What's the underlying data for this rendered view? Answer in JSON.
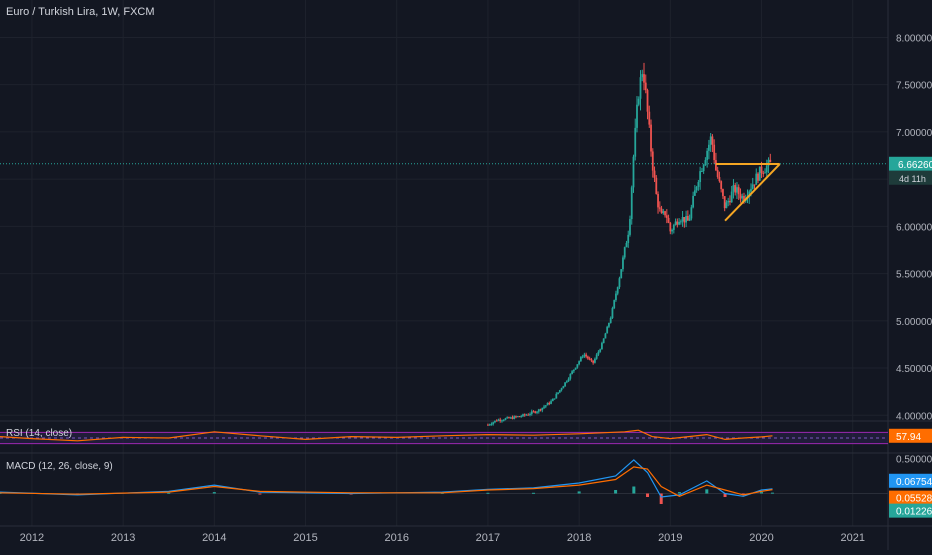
{
  "header": {
    "title": "Euro / Turkish Lira, 1W, FXCM"
  },
  "price_tag": {
    "price": "6.66260",
    "countdown": "4d 11h"
  },
  "rsi": {
    "label": "RSI (14, close)",
    "value": "57.94"
  },
  "macd": {
    "label": "MACD (12, 26, close, 9)",
    "tags": [
      "0.06754",
      "0.05528",
      "0.01226"
    ],
    "axis_tick": "0.50000"
  },
  "colors": {
    "bg": "#131722",
    "up": "#26a69a",
    "down": "#ef5350",
    "accent": "#f5a623",
    "rsi_line": "#ff6d00",
    "macd_line": "#2196f3",
    "signal_line": "#ff6d00"
  },
  "chart_data": [
    {
      "type": "candlestick",
      "title": "Euro / Turkish Lira, 1W, FXCM",
      "x_ticks": [
        "2012",
        "2013",
        "2014",
        "2015",
        "2016",
        "2017",
        "2018",
        "2019",
        "2020",
        "2021"
      ],
      "y_ticks": [
        "4.00000",
        "4.50000",
        "5.00000",
        "5.50000",
        "6.00000",
        "6.50000",
        "7.00000",
        "7.50000",
        "8.00000"
      ],
      "ylim": [
        3.95,
        8.1
      ],
      "last_price": 6.6626,
      "points": [
        [
          2017.0,
          3.9
        ],
        [
          2017.1,
          3.95
        ],
        [
          2017.25,
          3.97
        ],
        [
          2017.4,
          4.0
        ],
        [
          2017.55,
          4.05
        ],
        [
          2017.7,
          4.15
        ],
        [
          2017.85,
          4.35
        ],
        [
          2017.95,
          4.5
        ],
        [
          2018.05,
          4.65
        ],
        [
          2018.15,
          4.55
        ],
        [
          2018.25,
          4.75
        ],
        [
          2018.35,
          5.05
        ],
        [
          2018.45,
          5.5
        ],
        [
          2018.55,
          6.0
        ],
        [
          2018.6,
          6.8
        ],
        [
          2018.65,
          7.4
        ],
        [
          2018.7,
          7.7
        ],
        [
          2018.75,
          7.2
        ],
        [
          2018.8,
          6.7
        ],
        [
          2018.85,
          6.3
        ],
        [
          2018.9,
          6.1
        ],
        [
          2018.95,
          6.15
        ],
        [
          2019.0,
          5.95
        ],
        [
          2019.1,
          6.1
        ],
        [
          2019.2,
          6.05
        ],
        [
          2019.3,
          6.5
        ],
        [
          2019.4,
          6.8
        ],
        [
          2019.45,
          6.95
        ],
        [
          2019.5,
          6.6
        ],
        [
          2019.6,
          6.2
        ],
        [
          2019.7,
          6.4
        ],
        [
          2019.8,
          6.3
        ],
        [
          2019.9,
          6.45
        ],
        [
          2020.0,
          6.6
        ],
        [
          2020.1,
          6.66
        ]
      ],
      "annotations": [
        {
          "type": "horizontal",
          "from": 2019.5,
          "to": 2020.2,
          "value": 6.66
        },
        {
          "type": "trendline",
          "from": [
            2019.6,
            6.06
          ],
          "to": [
            2020.2,
            6.66
          ]
        }
      ]
    },
    {
      "type": "line",
      "name": "RSI (14, close)",
      "ylim": [
        0,
        100
      ],
      "levels": [
        30,
        50,
        70
      ],
      "x": [
        2011.65,
        2012.0,
        2012.5,
        2013.0,
        2013.5,
        2014.0,
        2014.5,
        2015.0,
        2015.5,
        2016.0,
        2016.5,
        2017.0,
        2017.5,
        2018.0,
        2018.5,
        2018.65,
        2018.8,
        2019.0,
        2019.4,
        2019.6,
        2019.8,
        2020.0,
        2020.12
      ],
      "values": [
        55,
        48,
        40,
        52,
        50,
        72,
        58,
        45,
        55,
        52,
        58,
        62,
        60,
        65,
        72,
        78,
        55,
        48,
        62,
        45,
        50,
        54,
        57.94
      ]
    },
    {
      "type": "line",
      "name": "MACD (12, 26, close, 9)",
      "ylim": [
        -0.35,
        0.55
      ],
      "x": [
        2011.65,
        2012.5,
        2013.5,
        2014.0,
        2014.5,
        2015.5,
        2016.5,
        2017.0,
        2017.5,
        2018.0,
        2018.4,
        2018.6,
        2018.75,
        2018.9,
        2019.1,
        2019.4,
        2019.6,
        2019.8,
        2020.0,
        2020.12
      ],
      "macd": [
        0.02,
        -0.02,
        0.03,
        0.12,
        0.02,
        0.0,
        0.02,
        0.06,
        0.08,
        0.15,
        0.25,
        0.48,
        0.3,
        -0.05,
        -0.02,
        0.18,
        0.0,
        -0.04,
        0.05,
        0.06754
      ],
      "signal": [
        0.01,
        -0.01,
        0.02,
        0.1,
        0.03,
        0.01,
        0.01,
        0.05,
        0.07,
        0.12,
        0.2,
        0.38,
        0.35,
        0.1,
        -0.04,
        0.12,
        0.05,
        -0.02,
        0.03,
        0.05528
      ],
      "histogram": [
        0.01,
        -0.01,
        0.01,
        0.02,
        -0.01,
        -0.01,
        0.01,
        0.01,
        0.01,
        0.03,
        0.05,
        0.1,
        -0.05,
        -0.15,
        0.02,
        0.06,
        -0.05,
        -0.02,
        0.02,
        0.01226
      ]
    }
  ]
}
